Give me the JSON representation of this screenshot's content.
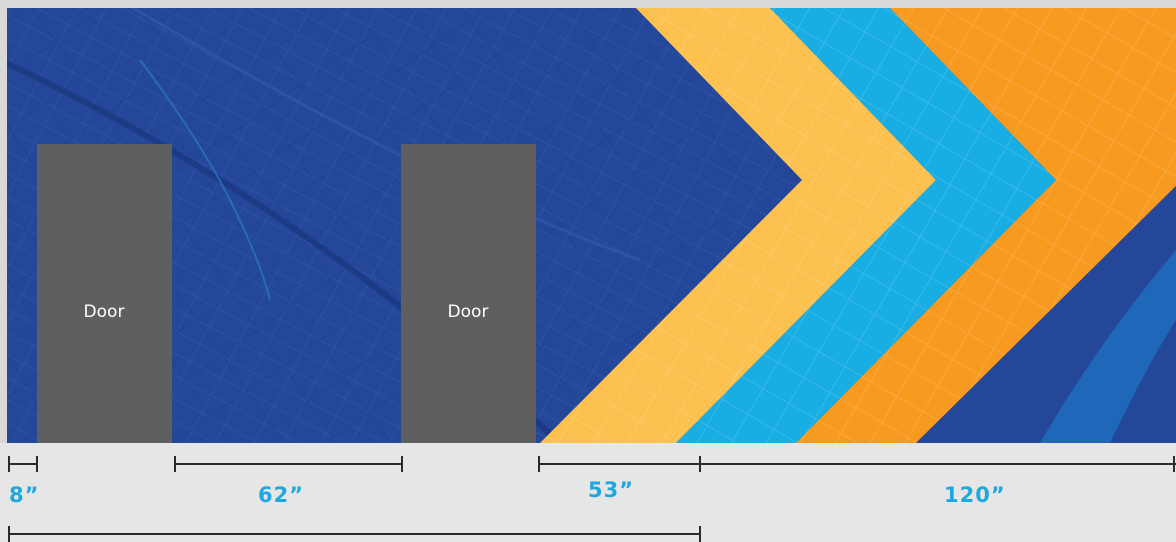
{
  "doors": [
    {
      "label": "Door"
    },
    {
      "label": "Door"
    }
  ],
  "dimensions": {
    "d1": "8”",
    "d2": "62”",
    "d3": "53”",
    "d4": "120”"
  },
  "colors": {
    "map_blue": "#25479a",
    "door_gray": "#5f5f5f",
    "yellow_chevron": "#fcc14f",
    "blue_chevron": "#18ade3",
    "orange_chevron": "#f89a1f",
    "dimension_text": "#1fa8e0",
    "background": "#e6e6e7"
  }
}
